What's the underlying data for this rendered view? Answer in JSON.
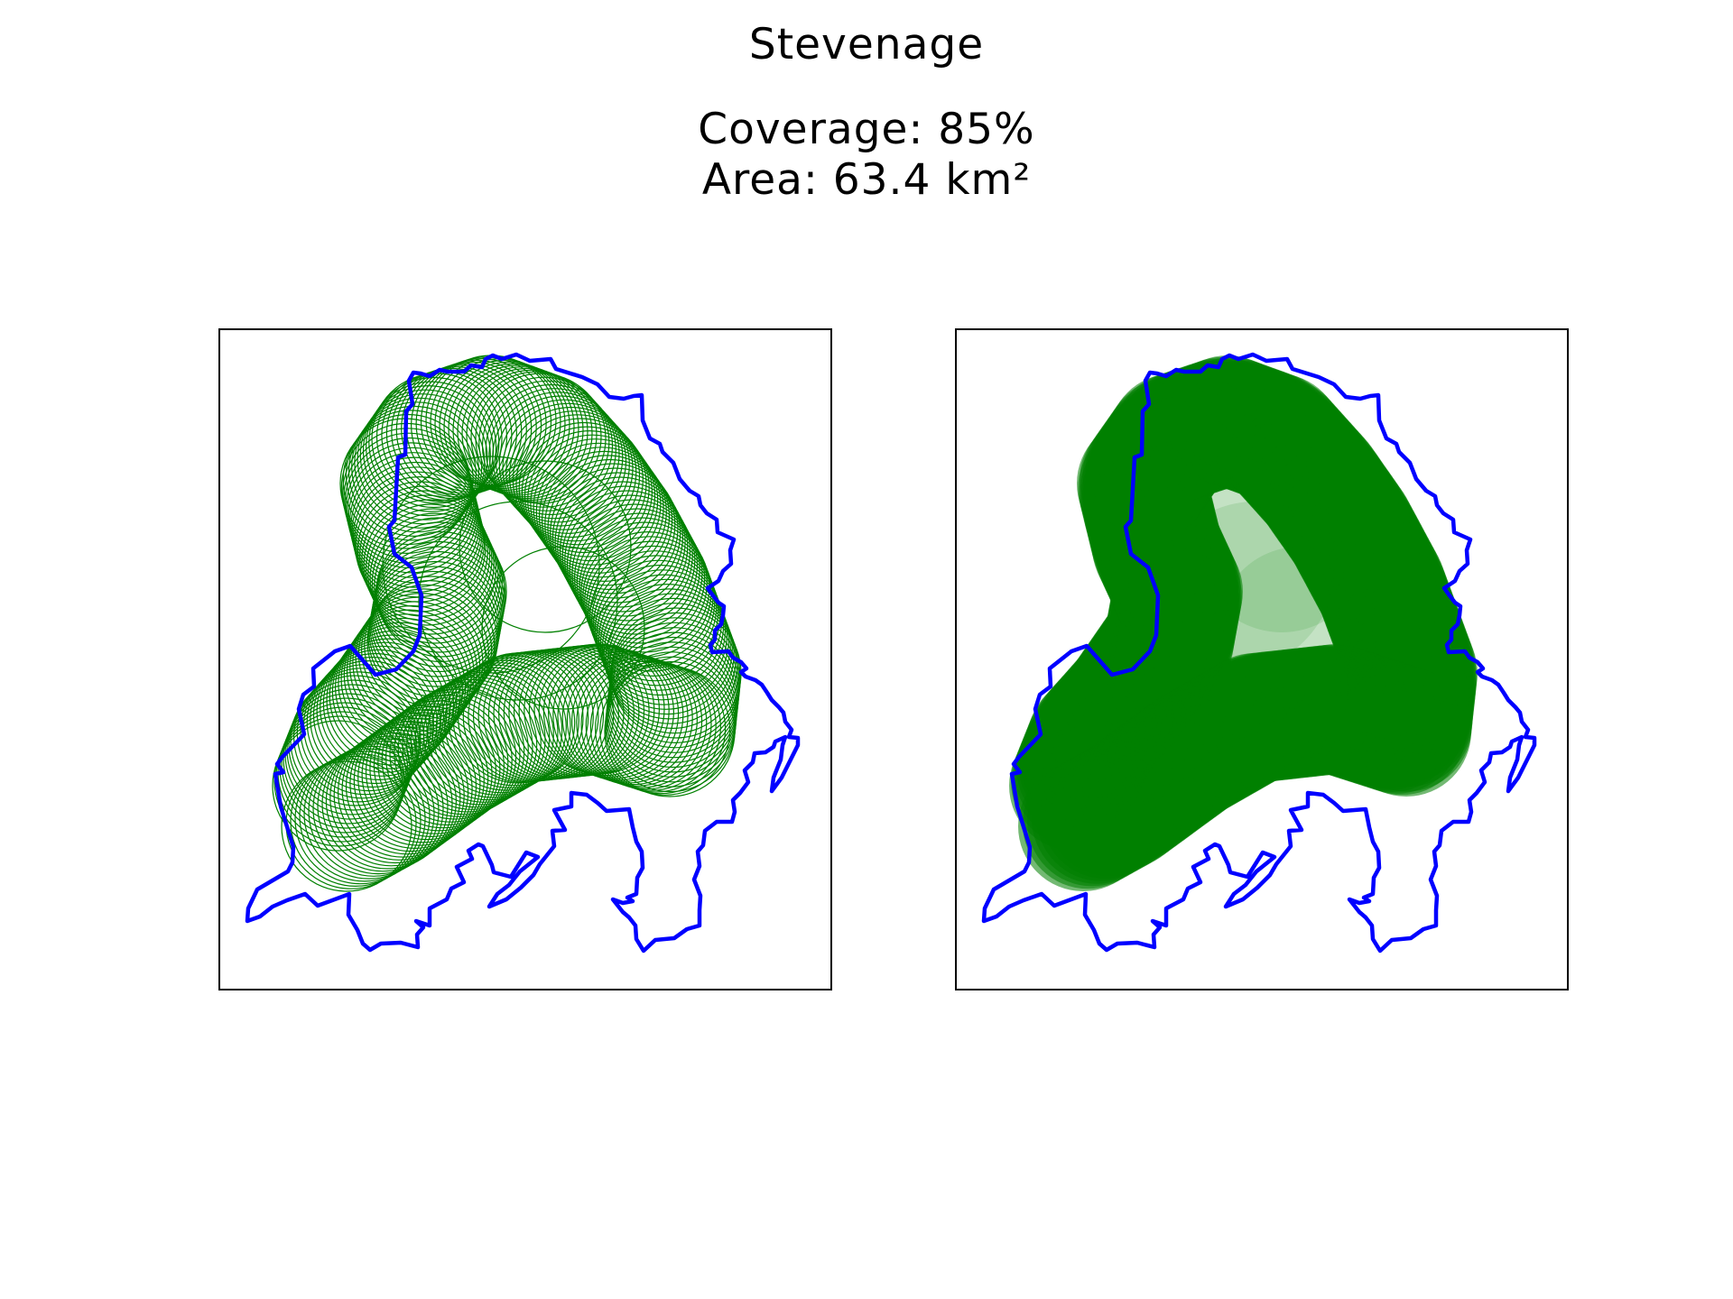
{
  "figure": {
    "title": "Stevenage",
    "coverage_line": "Coverage: 85%",
    "area_line": "Area: 63.4 km²"
  },
  "colors": {
    "boundary": "#0000ff",
    "coverage": "#008000"
  },
  "panels": [
    {
      "style": "circle outlines"
    },
    {
      "style": "filled circles"
    }
  ]
}
